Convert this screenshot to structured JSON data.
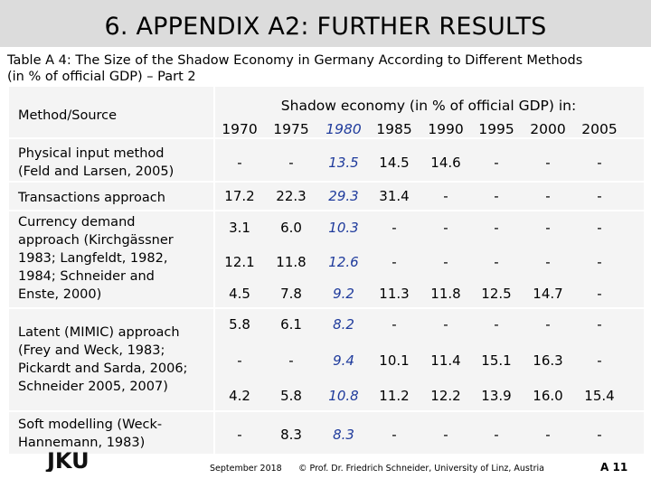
{
  "slide": {
    "title": "6. APPENDIX A2: FURTHER RESULTS",
    "caption_line1": "Table A 4: The Size of the Shadow Economy in Germany According to Different Methods",
    "caption_line2": "(in % of official GDP) – Part 2"
  },
  "table": {
    "method_header": "Method/Source",
    "super_header": "Shadow economy (in % of official GDP) in:",
    "years": [
      "1970",
      "1975",
      "1980",
      "1985",
      "1990",
      "1995",
      "2000",
      "2005"
    ],
    "highlight_column": "1980",
    "groups": [
      {
        "label_lines": [
          "Physical input method",
          "(Feld and Larsen, 2005)"
        ]
      },
      {
        "label_lines": [
          "Transactions approach"
        ]
      },
      {
        "label_lines": [
          "Currency demand",
          "approach (Kirchgässner",
          "1983; Langfeldt, 1982,",
          "1984; Schneider and",
          "Enste, 2000)"
        ]
      },
      {
        "label_lines": [
          "Latent (MIMIC) approach",
          "(Frey and Weck, 1983;",
          "Pickardt and Sarda, 2006;",
          "Schneider 2005, 2007)"
        ]
      },
      {
        "label_lines": [
          "Soft modelling (Weck-",
          "Hannemann, 1983)"
        ]
      }
    ],
    "rows": [
      [
        "-",
        "-",
        "13.5",
        "14.5",
        "14.6",
        "-",
        "-",
        "-"
      ],
      [
        "17.2",
        "22.3",
        "29.3",
        "31.4",
        "-",
        "-",
        "-",
        "-"
      ],
      [
        "3.1",
        "6.0",
        "10.3",
        "-",
        "-",
        "-",
        "-",
        "-"
      ],
      [
        "12.1",
        "11.8",
        "12.6",
        "-",
        "-",
        "-",
        "-",
        "-"
      ],
      [
        "4.5",
        "7.8",
        "9.2",
        "11.3",
        "11.8",
        "12.5",
        "14.7",
        "-"
      ],
      [
        "5.8",
        "6.1",
        "8.2",
        "-",
        "-",
        "-",
        "-",
        "-"
      ],
      [
        "-",
        "-",
        "9.4",
        "10.1",
        "11.4",
        "15.1",
        "16.3",
        "-"
      ],
      [
        "4.2",
        "5.8",
        "10.8",
        "11.2",
        "12.2",
        "13.9",
        "16.0",
        "15.4"
      ],
      [
        "-",
        "8.3",
        "8.3",
        "-",
        "-",
        "-",
        "-",
        "-"
      ]
    ]
  },
  "footer": {
    "date": "September 2018",
    "copyright": "© Prof. Dr. Friedrich Schneider, University of Linz, Austria",
    "page": "A 11",
    "logo_text": "JKU"
  }
}
